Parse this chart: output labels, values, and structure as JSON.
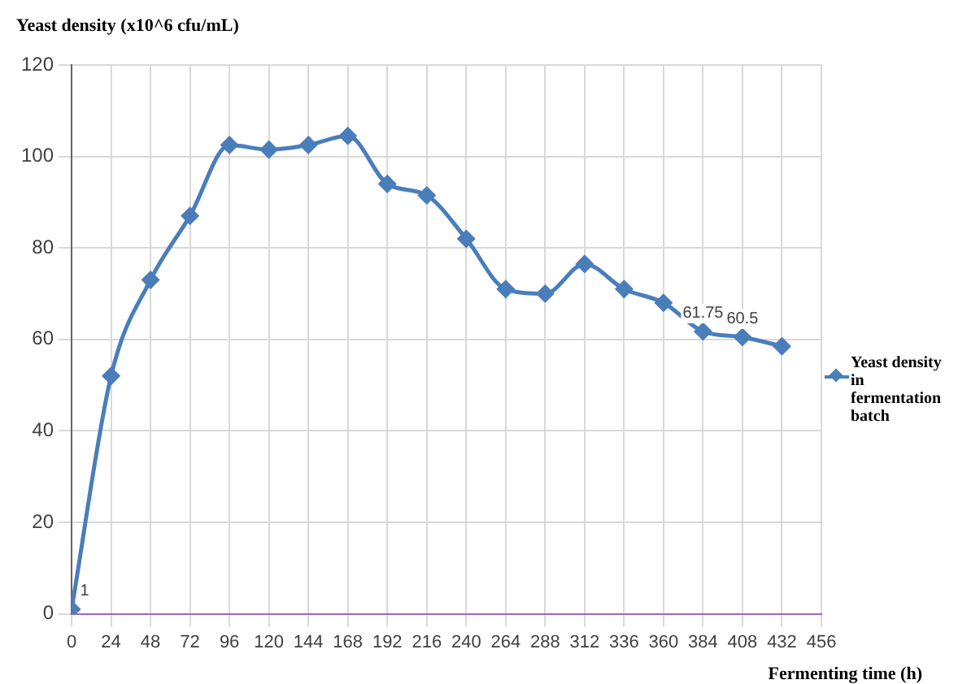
{
  "chart_data": {
    "type": "line",
    "ylabel": "Yeast density (x10^6 cfu/mL)",
    "xlabel": "Fermenting time (h)",
    "x": [
      0,
      24,
      48,
      72,
      96,
      120,
      144,
      168,
      192,
      216,
      240,
      264,
      288,
      312,
      336,
      360,
      384,
      408,
      432
    ],
    "series": [
      {
        "name": "Yeast density in fermentation batch",
        "color": "#4a7ebb",
        "values": [
          1,
          52,
          73,
          87,
          102.5,
          101.5,
          102.5,
          104.5,
          94,
          91.5,
          82,
          71,
          70,
          76.5,
          71,
          68,
          61.75,
          60.5,
          58.5
        ],
        "value_labels": [
          "1",
          null,
          null,
          null,
          null,
          null,
          null,
          null,
          null,
          null,
          null,
          null,
          null,
          null,
          null,
          null,
          "61.75",
          "60.5",
          null
        ]
      }
    ],
    "xlim": [
      0,
      456
    ],
    "xticks": [
      0,
      24,
      48,
      72,
      96,
      120,
      144,
      168,
      192,
      216,
      240,
      264,
      288,
      312,
      336,
      360,
      384,
      408,
      432,
      456
    ],
    "ylim": [
      0,
      120
    ],
    "yticks": [
      0,
      20,
      40,
      60,
      80,
      100,
      120
    ],
    "grid": true,
    "legend": "right",
    "marker": "diamond",
    "line_style": "solid"
  }
}
